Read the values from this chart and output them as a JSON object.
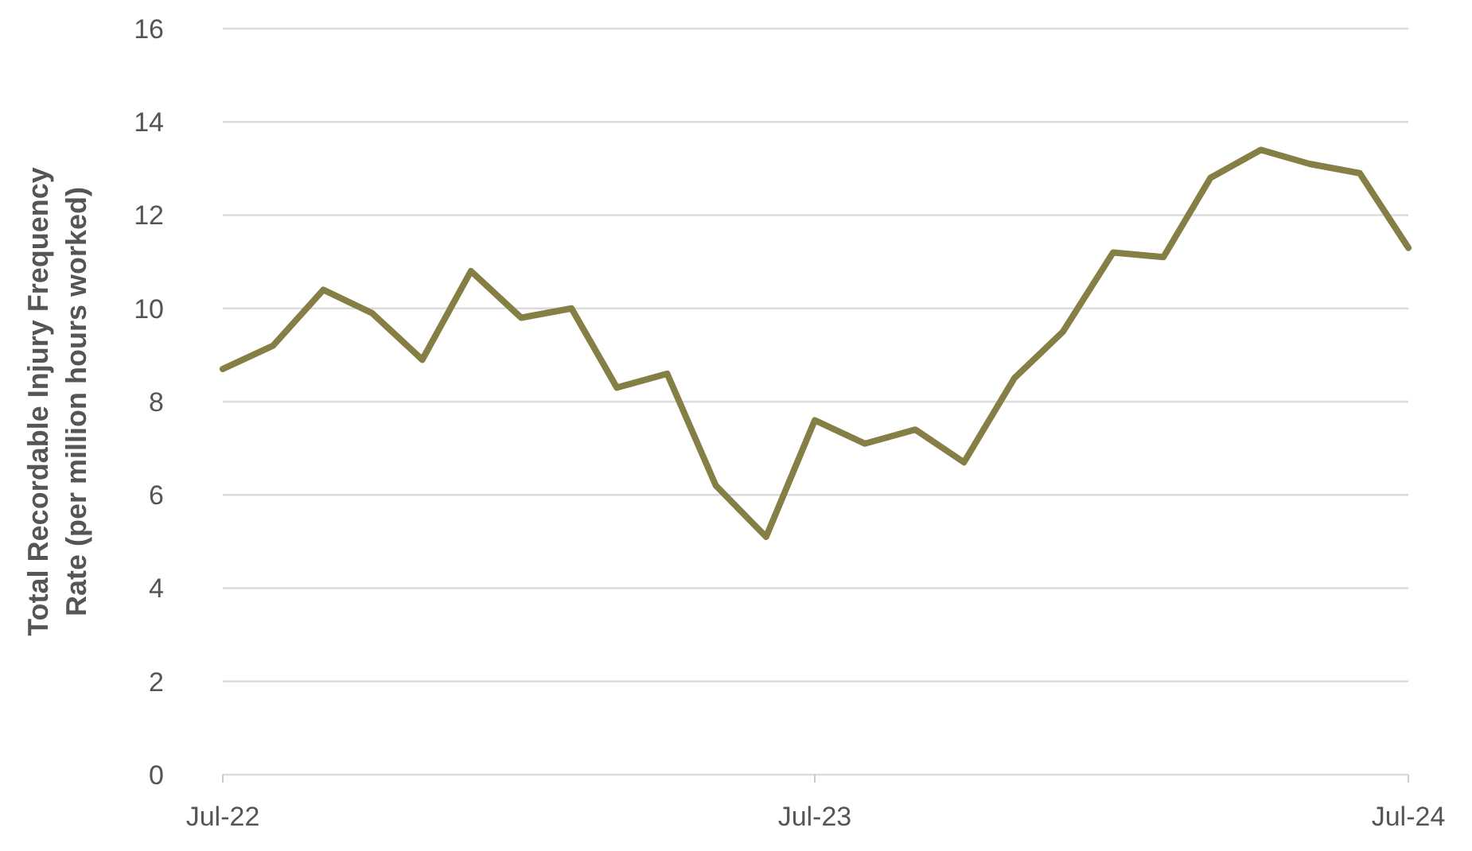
{
  "chart_data": {
    "type": "line",
    "ylabel": "Total Recordable Injury Frequency Rate (per million hours worked)",
    "x": [
      "2022-07",
      "2022-08",
      "2022-09",
      "2022-10",
      "2022-11",
      "2022-12",
      "2023-01",
      "2023-02",
      "2023-03",
      "2023-04",
      "2023-05",
      "2023-06",
      "2023-07",
      "2023-08",
      "2023-09",
      "2023-10",
      "2023-11",
      "2023-12",
      "2024-01",
      "2024-02",
      "2024-03",
      "2024-04",
      "2024-05",
      "2024-06",
      "2024-07"
    ],
    "series": [
      {
        "color": "#867f45",
        "values": [
          8.7,
          9.2,
          10.4,
          9.9,
          8.9,
          10.8,
          9.8,
          10.0,
          8.3,
          8.6,
          6.2,
          5.1,
          7.6,
          7.1,
          7.4,
          6.7,
          8.5,
          9.5,
          11.2,
          11.1,
          12.8,
          13.4,
          13.1,
          12.9,
          11.3
        ]
      }
    ],
    "xlim": [
      "2022-07",
      "2024-07"
    ],
    "xticks": [
      {
        "value": "2022-07",
        "label": "Jul-22"
      },
      {
        "value": "2023-07",
        "label": "Jul-23"
      },
      {
        "value": "2024-07",
        "label": "Jul-24"
      }
    ],
    "ylim": [
      0,
      16
    ],
    "yticks": [
      0,
      2,
      4,
      6,
      8,
      10,
      12,
      14,
      16
    ],
    "grid": "y",
    "line_style": "solid"
  }
}
